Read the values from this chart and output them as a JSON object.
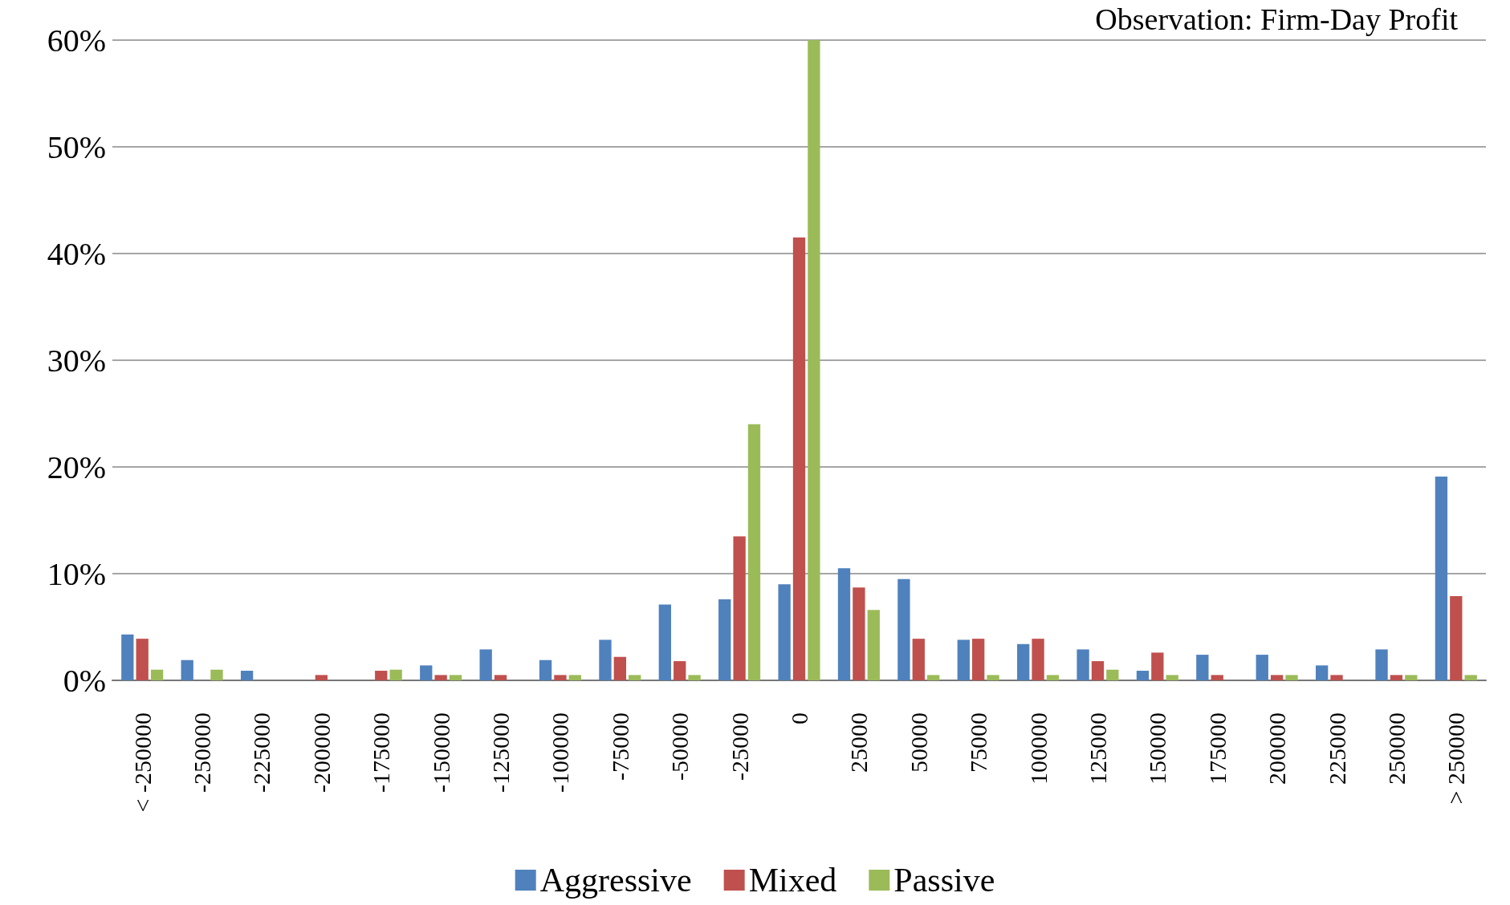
{
  "chart_data": {
    "type": "bar",
    "title": "Observation: Firm-Day Profit",
    "categories": [
      "< -250000",
      "-250000",
      "-225000",
      "-200000",
      "-175000",
      "-150000",
      "-125000",
      "-100000",
      "-75000",
      "-50000",
      "-25000",
      "0",
      "25000",
      "50000",
      "75000",
      "100000",
      "125000",
      "150000",
      "175000",
      "200000",
      "225000",
      "250000",
      "> 250000"
    ],
    "series": [
      {
        "name": "Aggressive",
        "color": "#4f81bd",
        "values": [
          4.3,
          1.9,
          0.9,
          0,
          0,
          1.4,
          2.9,
          1.9,
          3.8,
          7.1,
          7.6,
          9.0,
          10.5,
          9.5,
          3.8,
          3.4,
          2.9,
          0.9,
          2.4,
          2.4,
          1.4,
          2.9,
          19.1
        ]
      },
      {
        "name": "Mixed",
        "color": "#c0504d",
        "values": [
          3.9,
          0,
          0,
          0.5,
          0.9,
          0.5,
          0.5,
          0.5,
          2.2,
          1.8,
          13.5,
          41.5,
          8.7,
          3.9,
          3.9,
          3.9,
          1.8,
          2.6,
          0.5,
          0.5,
          0.5,
          0.5,
          7.9
        ]
      },
      {
        "name": "Passive",
        "color": "#9bbb59",
        "values": [
          1.0,
          1.0,
          0,
          0,
          1.0,
          0.5,
          0,
          0.5,
          0.5,
          0.5,
          24,
          60,
          6.6,
          0.5,
          0.5,
          0.5,
          1.0,
          0.5,
          0,
          0.5,
          0,
          0.5,
          0.5
        ]
      }
    ],
    "ylim": [
      0,
      60
    ],
    "yticks": [
      {
        "value": 0,
        "label": "0%"
      },
      {
        "value": 10,
        "label": "10%"
      },
      {
        "value": 20,
        "label": "20%"
      },
      {
        "value": 30,
        "label": "30%"
      },
      {
        "value": 40,
        "label": "40%"
      },
      {
        "value": 50,
        "label": "50%"
      },
      {
        "value": 60,
        "label": "60%"
      }
    ],
    "grid": "y",
    "legend": "bottom"
  }
}
